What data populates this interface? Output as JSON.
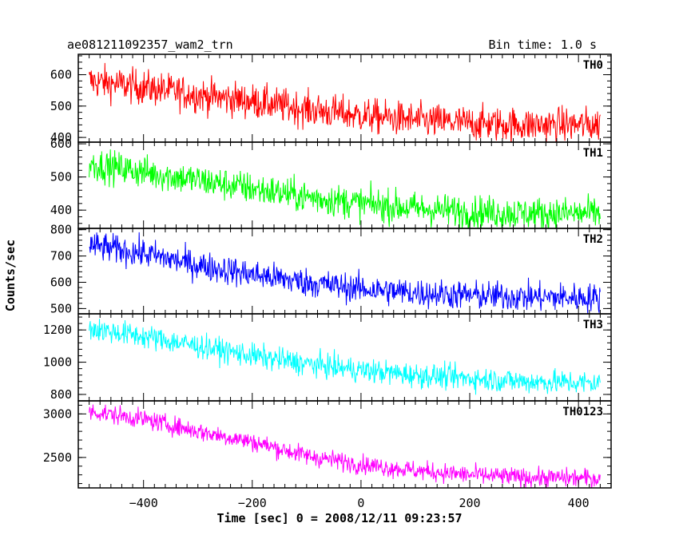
{
  "header": {
    "left_title": "ae081211092357_wam2_trn",
    "right_title": "Bin time: 1.0 s"
  },
  "axes": {
    "xlabel": "Time [sec] 0 = 2008/12/11 09:23:57",
    "ylabel": "Counts/sec"
  },
  "chart_data": {
    "type": "line",
    "title": "ae081211092357_wam2_trn",
    "subtitle": "Bin time: 1.0 s",
    "xlabel": "Time [sec] 0 = 2008/12/11 09:23:57",
    "ylabel": "Counts/sec",
    "xlim": [
      -520,
      460
    ],
    "x_range_data": [
      -500,
      440
    ],
    "x_ticks": [
      -400,
      -200,
      0,
      200,
      400
    ],
    "bin_time": 1.0,
    "grid": false,
    "legend": "none",
    "series": [
      {
        "name": "TH0",
        "color": "#ff0000",
        "ylim": [
          385,
          665
        ],
        "y_ticks": [
          400,
          500,
          600
        ],
        "trend_x": [
          -500,
          -400,
          -300,
          -200,
          -100,
          0,
          100,
          200,
          300,
          440
        ],
        "trend_y": [
          580,
          560,
          535,
          515,
          490,
          470,
          455,
          445,
          440,
          440
        ],
        "noise": 28
      },
      {
        "name": "TH1",
        "color": "#00ff00",
        "ylim": [
          345,
          605
        ],
        "y_ticks": [
          400,
          500,
          600
        ],
        "trend_x": [
          -500,
          -400,
          -300,
          -200,
          -100,
          0,
          100,
          200,
          300,
          440
        ],
        "trend_y": [
          540,
          515,
          490,
          465,
          440,
          420,
          405,
          395,
          390,
          390
        ],
        "noise": 25
      },
      {
        "name": "TH2",
        "color": "#0000ff",
        "ylim": [
          480,
          805
        ],
        "y_ticks": [
          500,
          600,
          700,
          800
        ],
        "trend_x": [
          -500,
          -400,
          -300,
          -200,
          -100,
          0,
          100,
          200,
          300,
          440
        ],
        "trend_y": [
          740,
          710,
          665,
          630,
          600,
          575,
          560,
          550,
          545,
          540
        ],
        "noise": 28
      },
      {
        "name": "TH3",
        "color": "#00ffff",
        "ylim": [
          760,
          1300
        ],
        "y_ticks": [
          800,
          1000,
          1200
        ],
        "trend_x": [
          -500,
          -400,
          -300,
          -200,
          -100,
          0,
          100,
          200,
          300,
          440
        ],
        "trend_y": [
          1210,
          1160,
          1100,
          1040,
          990,
          950,
          920,
          900,
          880,
          870
        ],
        "noise": 38
      },
      {
        "name": "TH0123",
        "color": "#ff00ff",
        "ylim": [
          2150,
          3150
        ],
        "y_ticks": [
          2500,
          3000
        ],
        "trend_x": [
          -500,
          -400,
          -300,
          -200,
          -100,
          0,
          100,
          200,
          300,
          440
        ],
        "trend_y": [
          3030,
          2940,
          2800,
          2680,
          2520,
          2420,
          2350,
          2300,
          2270,
          2260
        ],
        "noise": 55
      }
    ]
  }
}
